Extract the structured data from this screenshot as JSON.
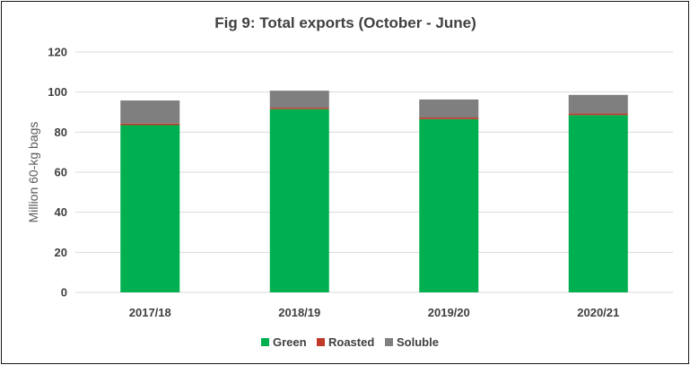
{
  "chart_data": {
    "type": "bar",
    "stacked": true,
    "title": "Fig 9: Total exports (October - June)",
    "xlabel": "",
    "ylabel": "Million 60-kg bags",
    "ylim": [
      0,
      120
    ],
    "yticks": [
      "0",
      "20",
      "40",
      "60",
      "80",
      "100",
      "120"
    ],
    "categories": [
      "2017/18",
      "2018/19",
      "2019/20",
      "2020/21"
    ],
    "series": [
      {
        "name": "Green",
        "color": "#00b050",
        "values": [
          83.5,
          91.5,
          86.5,
          88.5
        ]
      },
      {
        "name": "Roasted",
        "color": "#c0392b",
        "values": [
          0.8,
          0.7,
          0.8,
          0.8
        ]
      },
      {
        "name": "Soluble",
        "color": "#7f7f7f",
        "values": [
          11.5,
          8.5,
          9.0,
          9.3
        ]
      }
    ],
    "grid": true,
    "legend": "bottom"
  }
}
